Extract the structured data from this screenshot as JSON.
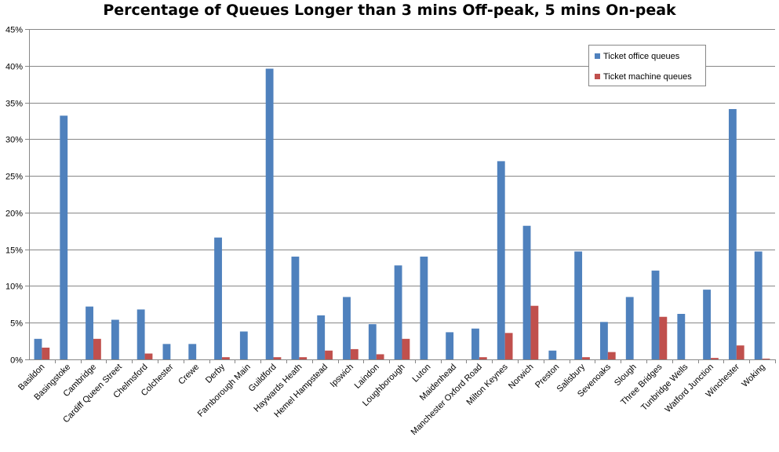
{
  "chart_data": {
    "type": "bar",
    "title": "Percentage of Queues Longer than 3 mins Off-peak, 5 mins On-peak",
    "xlabel": "",
    "ylabel": "",
    "ylim": [
      0,
      45
    ],
    "yticks": [
      "0%",
      "5%",
      "10%",
      "15%",
      "20%",
      "25%",
      "30%",
      "35%",
      "40%",
      "45%"
    ],
    "grid": true,
    "legend_position": "top-right",
    "categories": [
      "Basildon",
      "Basingstoke",
      "Cambridge",
      "Cardiff Queen Street",
      "Chelmsford",
      "Colchester",
      "Crewe",
      "Derby",
      "Farnborough Main",
      "Guildford",
      "Haywards Heath",
      "Hemel Hampstead",
      "Ipswich",
      "Laindon",
      "Loughborough",
      "Luton",
      "Maidenhead",
      "Manchester Oxford Road",
      "Milton Keynes",
      "Norwich",
      "Preston",
      "Salisbury",
      "Sevenoaks",
      "Slough",
      "Three Bridges",
      "Tunbridge Wells",
      "Watford Junction",
      "Winchester",
      "Woking"
    ],
    "series": [
      {
        "name": "Ticket office queues",
        "color": "#4F81BD",
        "values": [
          2.8,
          33.2,
          7.2,
          5.4,
          6.8,
          2.1,
          2.1,
          16.6,
          3.8,
          39.6,
          14.0,
          6.0,
          8.5,
          4.8,
          12.8,
          14.0,
          3.7,
          4.2,
          27.0,
          18.2,
          1.2,
          14.7,
          5.1,
          8.5,
          12.1,
          6.2,
          9.5,
          34.1,
          14.7
        ]
      },
      {
        "name": "Ticket machine queues",
        "color": "#C0504D",
        "values": [
          1.6,
          0,
          2.8,
          0,
          0.8,
          0,
          0,
          0.3,
          0,
          0.3,
          0.3,
          1.2,
          1.4,
          0.7,
          2.8,
          0,
          0,
          0.3,
          3.6,
          7.3,
          0,
          0.3,
          1.0,
          0,
          5.8,
          0,
          0.2,
          1.9,
          0.1
        ]
      }
    ]
  }
}
